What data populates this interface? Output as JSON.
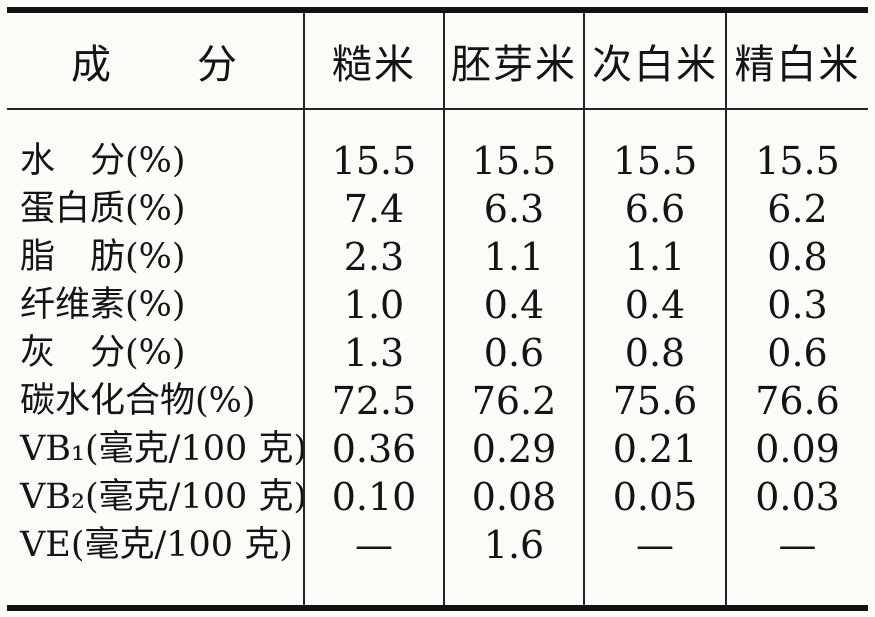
{
  "table": {
    "header": {
      "component": "成　　分",
      "columns": [
        "糙米",
        "胚芽米",
        "次白米",
        "精白米"
      ]
    },
    "rows": [
      {
        "label": "水　分(%)",
        "values": [
          "15.5",
          "15.5",
          "15.5",
          "15.5"
        ]
      },
      {
        "label": "蛋白质(%)",
        "values": [
          "7.4",
          "6.3",
          "6.6",
          "6.2"
        ]
      },
      {
        "label": "脂　肪(%)",
        "values": [
          "2.3",
          "1.1",
          "1.1",
          "0.8"
        ]
      },
      {
        "label": "纤维素(%)",
        "values": [
          "1.0",
          "0.4",
          "0.4",
          "0.3"
        ]
      },
      {
        "label": "灰　分(%)",
        "values": [
          "1.3",
          "0.6",
          "0.8",
          "0.6"
        ]
      },
      {
        "label": "碳水化合物(%)",
        "values": [
          "72.5",
          "76.2",
          "75.6",
          "76.6"
        ]
      },
      {
        "label": "VB₁(毫克/100 克)",
        "values": [
          "0.36",
          "0.29",
          "0.21",
          "0.09"
        ]
      },
      {
        "label": "VB₂(毫克/100 克)",
        "values": [
          "0.10",
          "0.08",
          "0.05",
          "0.03"
        ]
      },
      {
        "label": "VE(毫克/100 克)",
        "values": [
          "—",
          "1.6",
          "—",
          "—"
        ]
      }
    ]
  },
  "colors": {
    "background": "#fbfbf8",
    "text": "#141414",
    "rule": "#242424",
    "heavy_rule": "#131313"
  }
}
